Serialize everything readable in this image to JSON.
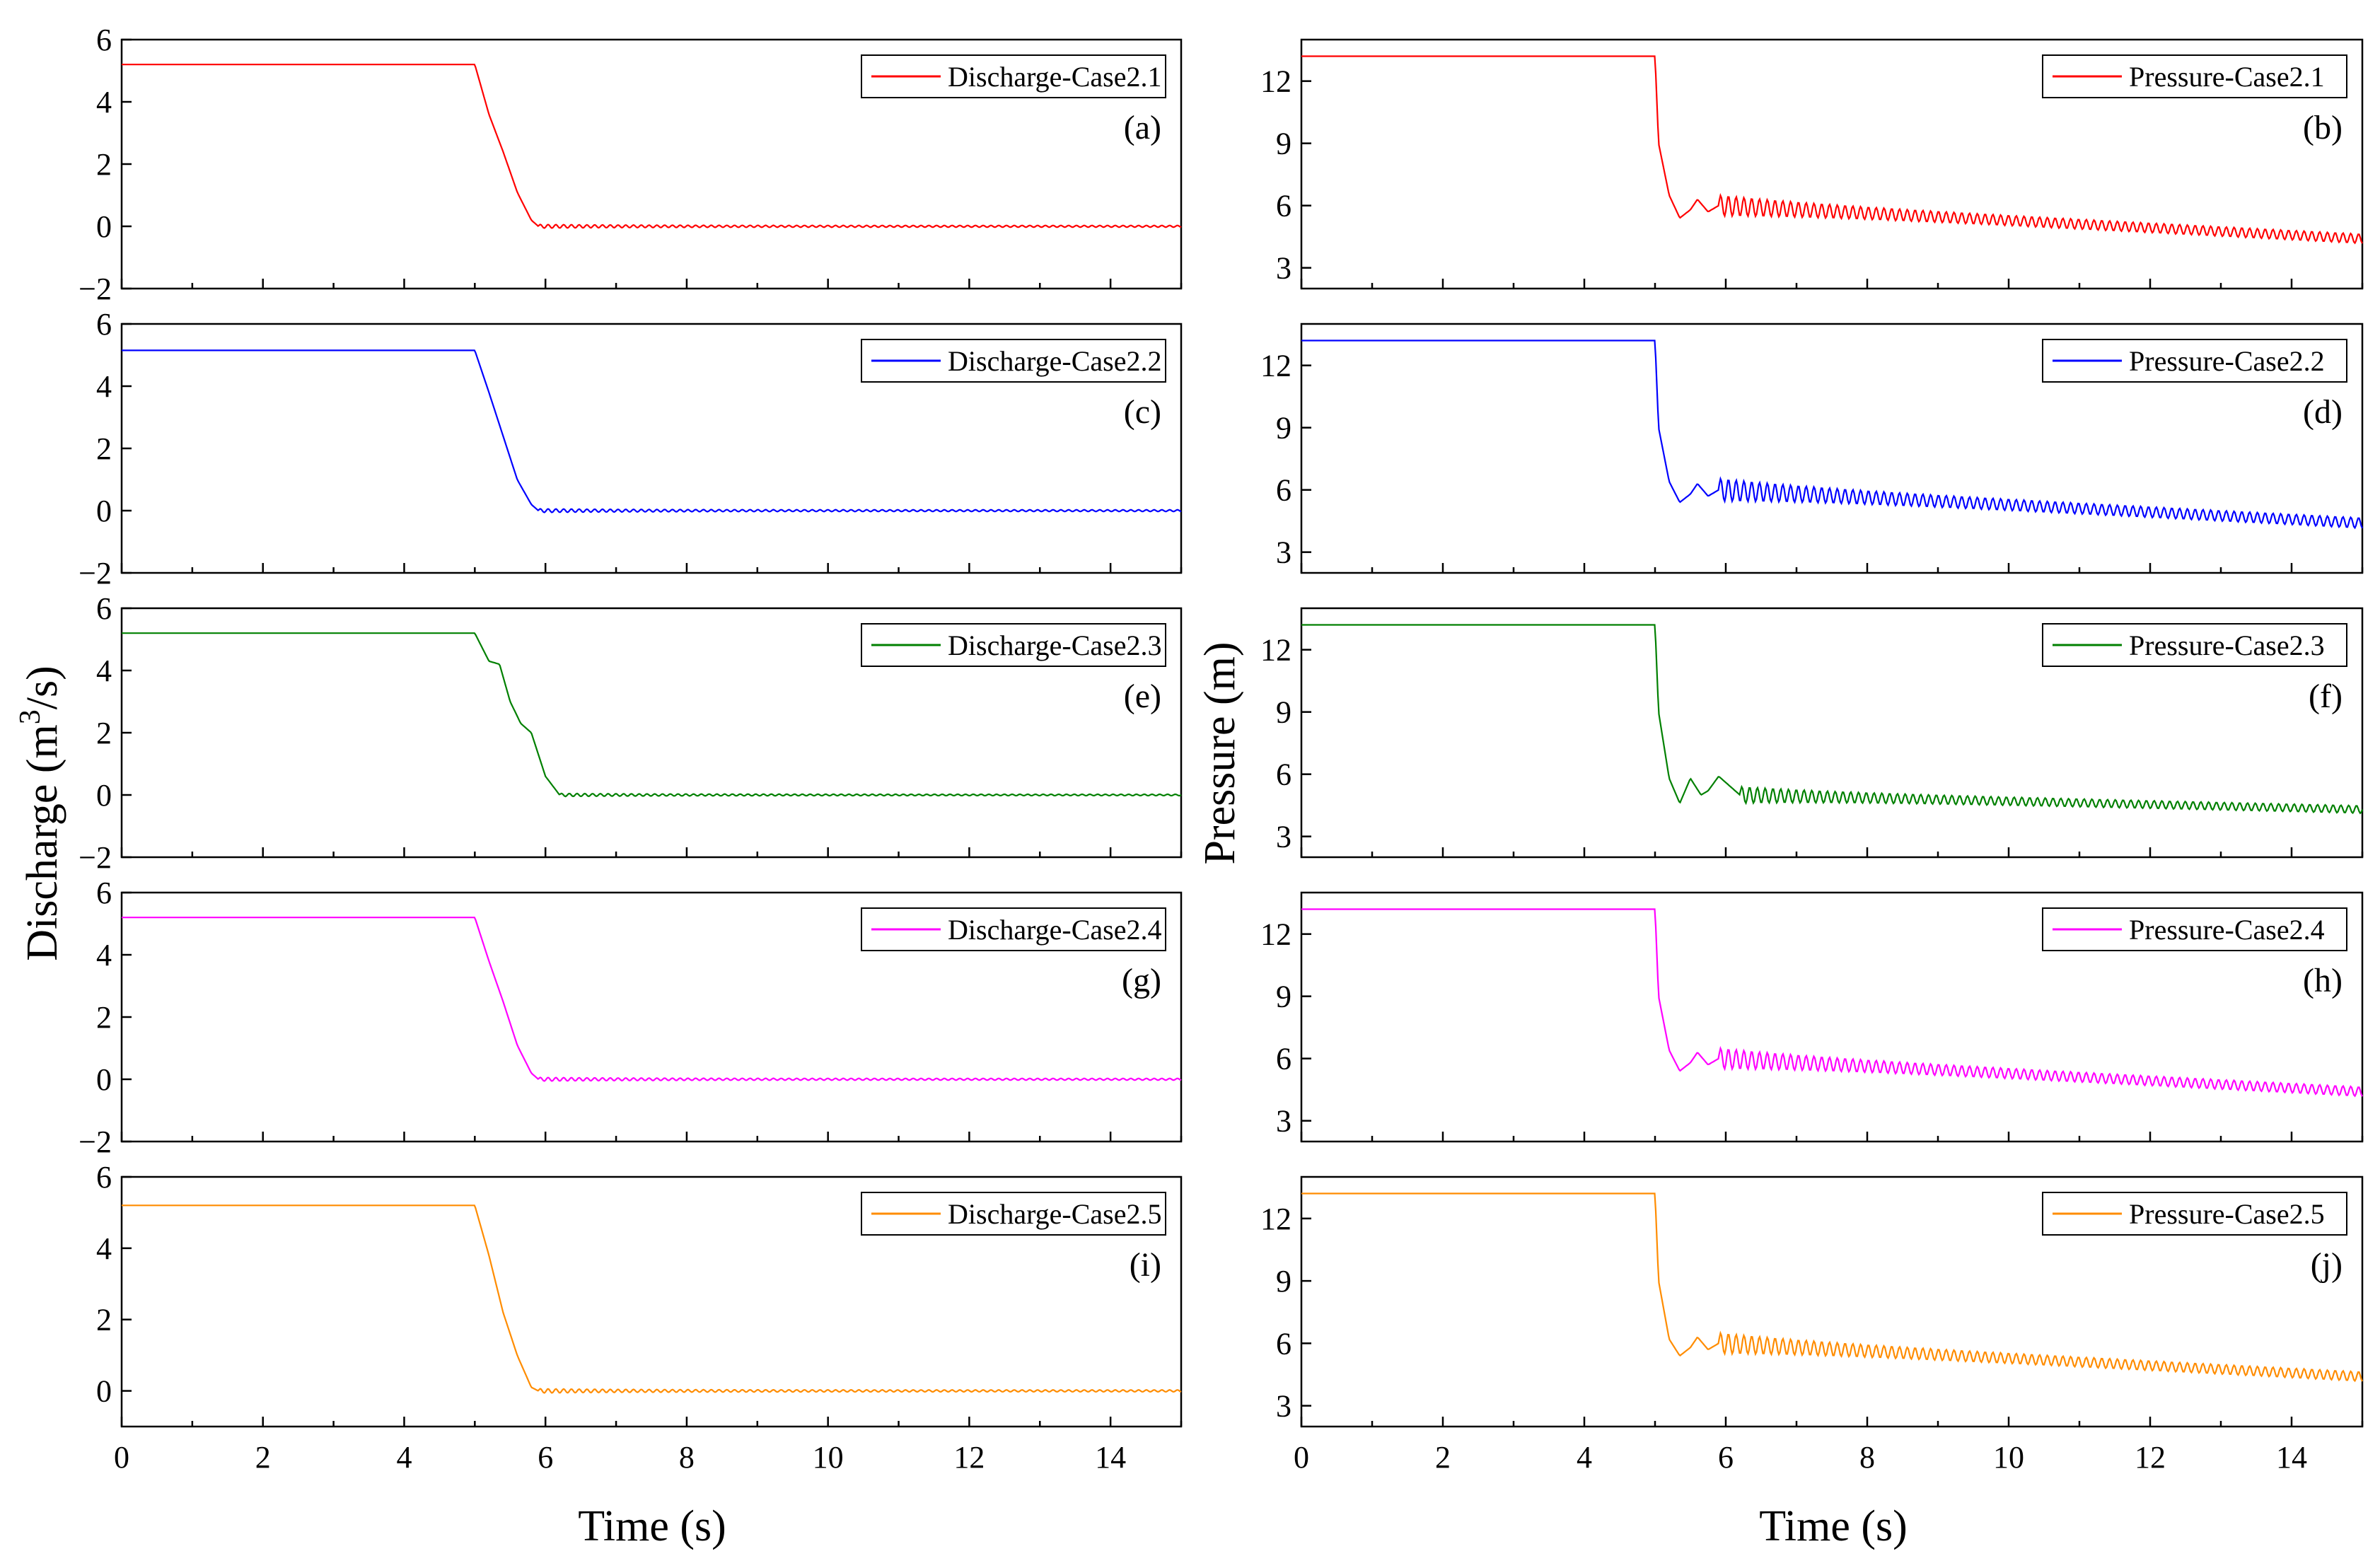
{
  "figure": {
    "left_ylabel_prefix": "Discharge (m",
    "left_ylabel_sup": "3",
    "left_ylabel_suffix": "/s)",
    "right_ylabel": "Pressure (m)",
    "xlabel": "Time (s)"
  },
  "chart_data": [
    {
      "type": "line",
      "panel": "(a)",
      "legend": "Discharge-Case2.1",
      "color": "#ff0000",
      "ylim": [
        -2,
        6
      ],
      "yticks": [
        "−2",
        "0",
        "2",
        "4",
        "6"
      ],
      "xlim": [
        0,
        15
      ],
      "xticks": [
        "0",
        "2",
        "4",
        "6",
        "8",
        "10",
        "12",
        "14"
      ],
      "series": [
        {
          "name": "Discharge-Case2.1",
          "x": [
            0,
            5.0,
            5.2,
            5.4,
            5.6,
            5.8,
            5.9,
            15
          ],
          "y": [
            5.2,
            5.2,
            3.6,
            2.4,
            1.1,
            0.2,
            0.0,
            0.0
          ],
          "oscillation": {
            "from": 5.9,
            "amp": 0.06
          }
        }
      ]
    },
    {
      "type": "line",
      "panel": "(b)",
      "legend": "Pressure-Case2.1",
      "color": "#ff0000",
      "ylim": [
        2,
        14
      ],
      "yticks": [
        "3",
        "6",
        "9",
        "12"
      ],
      "xlim": [
        0,
        15
      ],
      "xticks": [
        "0",
        "2",
        "4",
        "6",
        "8",
        "10",
        "12",
        "14"
      ],
      "series": [
        {
          "name": "Pressure-Case2.1",
          "x": [
            0,
            5.0,
            5.05,
            5.2,
            5.35,
            5.5,
            5.6,
            5.75,
            5.9,
            15
          ],
          "y": [
            13.2,
            13.2,
            9.0,
            6.5,
            5.4,
            5.8,
            6.3,
            5.7,
            6.0,
            4.4
          ],
          "oscillation": {
            "from": 5.9,
            "amp": 0.5
          }
        }
      ]
    },
    {
      "type": "line",
      "panel": "(c)",
      "legend": "Discharge-Case2.2",
      "color": "#0000ff",
      "ylim": [
        -2,
        6
      ],
      "yticks": [
        "−2",
        "0",
        "2",
        "4",
        "6"
      ],
      "xlim": [
        0,
        15
      ],
      "xticks": [
        "0",
        "2",
        "4",
        "6",
        "8",
        "10",
        "12",
        "14"
      ],
      "series": [
        {
          "name": "Discharge-Case2.2",
          "x": [
            0,
            5.0,
            5.2,
            5.4,
            5.6,
            5.8,
            5.9,
            15
          ],
          "y": [
            5.15,
            5.15,
            3.8,
            2.4,
            1.0,
            0.2,
            0.0,
            0.0
          ],
          "oscillation": {
            "from": 5.9,
            "amp": 0.06
          }
        }
      ]
    },
    {
      "type": "line",
      "panel": "(d)",
      "legend": "Pressure-Case2.2",
      "color": "#0000ff",
      "ylim": [
        2,
        14
      ],
      "yticks": [
        "3",
        "6",
        "9",
        "12"
      ],
      "xlim": [
        0,
        15
      ],
      "xticks": [
        "0",
        "2",
        "4",
        "6",
        "8",
        "10",
        "12",
        "14"
      ],
      "series": [
        {
          "name": "Pressure-Case2.2",
          "x": [
            0,
            5.0,
            5.05,
            5.2,
            5.35,
            5.5,
            5.6,
            5.75,
            5.9,
            15
          ],
          "y": [
            13.2,
            13.2,
            9.0,
            6.4,
            5.4,
            5.8,
            6.3,
            5.7,
            6.0,
            4.4
          ],
          "oscillation": {
            "from": 5.9,
            "amp": 0.55
          }
        }
      ]
    },
    {
      "type": "line",
      "panel": "(e)",
      "legend": "Discharge-Case2.3",
      "color": "#008000",
      "ylim": [
        -2,
        6
      ],
      "yticks": [
        "−2",
        "0",
        "2",
        "4",
        "6"
      ],
      "xlim": [
        0,
        15
      ],
      "xticks": [
        "0",
        "2",
        "4",
        "6",
        "8",
        "10",
        "12",
        "14"
      ],
      "series": [
        {
          "name": "Discharge-Case2.3",
          "x": [
            0,
            5.0,
            5.2,
            5.35,
            5.5,
            5.65,
            5.8,
            6.0,
            6.2,
            15
          ],
          "y": [
            5.2,
            5.2,
            4.3,
            4.2,
            3.0,
            2.3,
            2.0,
            0.6,
            0.0,
            0.0
          ],
          "oscillation": {
            "from": 6.2,
            "amp": 0.05
          }
        }
      ]
    },
    {
      "type": "line",
      "panel": "(f)",
      "legend": "Pressure-Case2.3",
      "color": "#008000",
      "ylim": [
        2,
        14
      ],
      "yticks": [
        "3",
        "6",
        "9",
        "12"
      ],
      "xlim": [
        0,
        15
      ],
      "xticks": [
        "0",
        "2",
        "4",
        "6",
        "8",
        "10",
        "12",
        "14"
      ],
      "series": [
        {
          "name": "Pressure-Case2.3",
          "x": [
            0,
            5.0,
            5.05,
            5.2,
            5.35,
            5.5,
            5.65,
            5.75,
            5.9,
            6.2,
            15
          ],
          "y": [
            13.2,
            13.2,
            9.0,
            5.8,
            4.6,
            5.8,
            5.0,
            5.2,
            5.9,
            5.0,
            4.3
          ],
          "oscillation": {
            "from": 6.2,
            "amp": 0.4
          }
        }
      ]
    },
    {
      "type": "line",
      "panel": "(g)",
      "legend": "Discharge-Case2.4",
      "color": "#ff00ff",
      "ylim": [
        -2,
        6
      ],
      "yticks": [
        "−2",
        "0",
        "2",
        "4",
        "6"
      ],
      "xlim": [
        0,
        15
      ],
      "xticks": [
        "0",
        "2",
        "4",
        "6",
        "8",
        "10",
        "12",
        "14"
      ],
      "series": [
        {
          "name": "Discharge-Case2.4",
          "x": [
            0,
            5.0,
            5.2,
            5.4,
            5.6,
            5.8,
            5.9,
            15
          ],
          "y": [
            5.2,
            5.2,
            3.8,
            2.5,
            1.1,
            0.2,
            0.0,
            0.0
          ],
          "oscillation": {
            "from": 5.9,
            "amp": 0.06
          }
        }
      ]
    },
    {
      "type": "line",
      "panel": "(h)",
      "legend": "Pressure-Case2.4",
      "color": "#ff00ff",
      "ylim": [
        2,
        14
      ],
      "yticks": [
        "3",
        "6",
        "9",
        "12"
      ],
      "xlim": [
        0,
        15
      ],
      "xticks": [
        "0",
        "2",
        "4",
        "6",
        "8",
        "10",
        "12",
        "14"
      ],
      "series": [
        {
          "name": "Pressure-Case2.4",
          "x": [
            0,
            5.0,
            5.05,
            5.2,
            5.35,
            5.5,
            5.6,
            5.75,
            5.9,
            15
          ],
          "y": [
            13.2,
            13.2,
            9.0,
            6.4,
            5.4,
            5.8,
            6.3,
            5.7,
            6.0,
            4.4
          ],
          "oscillation": {
            "from": 5.9,
            "amp": 0.5
          }
        }
      ]
    },
    {
      "type": "line",
      "panel": "(i)",
      "legend": "Discharge-Case2.5",
      "color": "#ff8c00",
      "ylim": [
        -1,
        6
      ],
      "yticks": [
        "0",
        "2",
        "4",
        "6"
      ],
      "xlim": [
        0,
        15
      ],
      "xticks": [
        "0",
        "2",
        "4",
        "6",
        "8",
        "10",
        "12",
        "14"
      ],
      "series": [
        {
          "name": "Discharge-Case2.5",
          "x": [
            0,
            5.0,
            5.2,
            5.4,
            5.6,
            5.8,
            5.9,
            15
          ],
          "y": [
            5.2,
            5.2,
            3.8,
            2.2,
            1.0,
            0.1,
            0.0,
            0.0
          ],
          "oscillation": {
            "from": 5.9,
            "amp": 0.06
          }
        }
      ]
    },
    {
      "type": "line",
      "panel": "(j)",
      "legend": "Pressure-Case2.5",
      "color": "#ff8c00",
      "ylim": [
        2,
        14
      ],
      "yticks": [
        "3",
        "6",
        "9",
        "12"
      ],
      "xlim": [
        0,
        15
      ],
      "xticks": [
        "0",
        "2",
        "4",
        "6",
        "8",
        "10",
        "12",
        "14"
      ],
      "series": [
        {
          "name": "Pressure-Case2.5",
          "x": [
            0,
            5.0,
            5.05,
            5.2,
            5.35,
            5.5,
            5.6,
            5.75,
            5.9,
            15
          ],
          "y": [
            13.2,
            13.2,
            9.0,
            6.2,
            5.4,
            5.8,
            6.3,
            5.7,
            6.0,
            4.4
          ],
          "oscillation": {
            "from": 5.9,
            "amp": 0.5
          }
        }
      ]
    }
  ]
}
